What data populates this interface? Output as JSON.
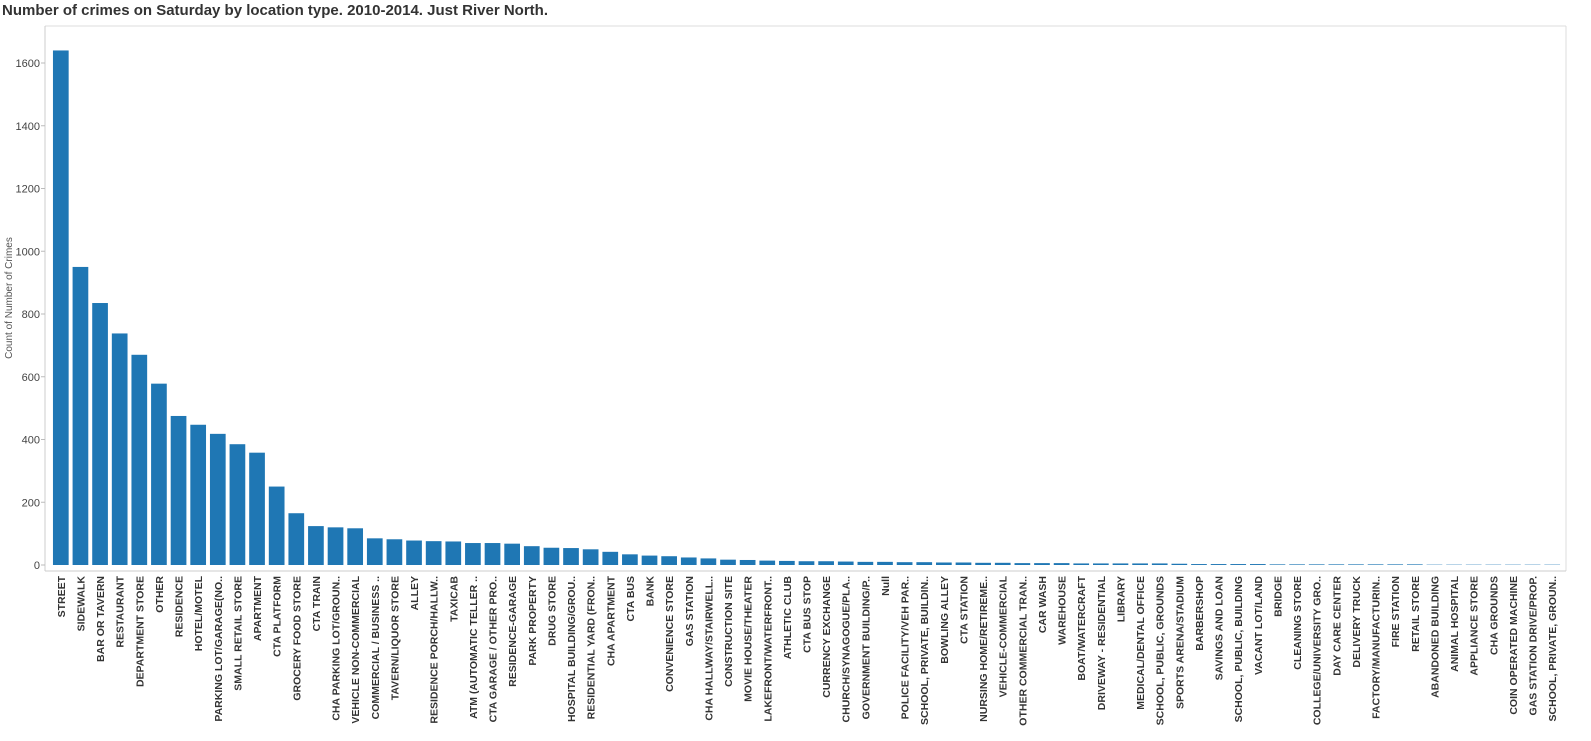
{
  "chart_data": {
    "type": "bar",
    "title": "Number of crimes on Saturday by location type. 2010-2014.  Just River North.",
    "xlabel": "",
    "ylabel": "Count of Number of Crimes",
    "ylim": [
      0,
      1700
    ],
    "yticks": [
      0,
      200,
      400,
      600,
      800,
      1000,
      1200,
      1400,
      1600
    ],
    "grid": false,
    "bar_color": "#1f77b4",
    "categories": [
      "STREET",
      "SIDEWALK",
      "BAR OR TAVERN",
      "RESTAURANT",
      "DEPARTMENT STORE",
      "OTHER",
      "RESIDENCE",
      "HOTEL/MOTEL",
      "PARKING LOT/GARAGE(NO..",
      "SMALL RETAIL STORE",
      "APARTMENT",
      "CTA PLATFORM",
      "GROCERY FOOD STORE",
      "CTA TRAIN",
      "CHA PARKING LOT/GROUN..",
      "VEHICLE NON-COMMERCIAL",
      "COMMERCIAL / BUSINESS ..",
      "TAVERN/LIQUOR STORE",
      "ALLEY",
      "RESIDENCE PORCH/HALLW..",
      "TAXICAB",
      "ATM (AUTOMATIC TELLER ..",
      "CTA GARAGE / OTHER PRO..",
      "RESIDENCE-GARAGE",
      "PARK PROPERTY",
      "DRUG STORE",
      "HOSPITAL BUILDING/GROU..",
      "RESIDENTIAL YARD (FRON..",
      "CHA APARTMENT",
      "CTA BUS",
      "BANK",
      "CONVENIENCE STORE",
      "GAS STATION",
      "CHA HALLWAY/STAIRWELL..",
      "CONSTRUCTION SITE",
      "MOVIE HOUSE/THEATER",
      "LAKEFRONT/WATERFRONT..",
      "ATHLETIC CLUB",
      "CTA BUS STOP",
      "CURRENCY EXCHANGE",
      "CHURCH/SYNAGOGUE/PLA..",
      "GOVERNMENT BUILDING/P..",
      "Null",
      "POLICE FACILITY/VEH PAR..",
      "SCHOOL, PRIVATE, BUILDIN..",
      "BOWLING ALLEY",
      "CTA STATION",
      "NURSING HOME/RETIREME..",
      "VEHICLE-COMMERCIAL",
      "OTHER COMMERCIAL TRAN..",
      "CAR WASH",
      "WAREHOUSE",
      "BOAT/WATERCRAFT",
      "DRIVEWAY - RESIDENTIAL",
      "LIBRARY",
      "MEDICAL/DENTAL OFFICE",
      "SCHOOL, PUBLIC, GROUNDS",
      "SPORTS ARENA/STADIUM",
      "BARBERSHOP",
      "SAVINGS AND LOAN",
      "SCHOOL, PUBLIC, BUILDING",
      "VACANT LOT/LAND",
      "BRIDGE",
      "CLEANING STORE",
      "COLLEGE/UNIVERSITY GRO..",
      "DAY CARE CENTER",
      "DELIVERY TRUCK",
      "FACTORY/MANUFACTURIN..",
      "FIRE STATION",
      "RETAIL STORE",
      "ABANDONED BUILDING",
      "ANIMAL HOSPITAL",
      "APPLIANCE STORE",
      "CHA GROUNDS",
      "COIN OPERATED MACHINE",
      "GAS STATION DRIVE/PROP.",
      "SCHOOL, PRIVATE, GROUN.."
    ],
    "values": [
      1640,
      950,
      835,
      738,
      670,
      578,
      475,
      447,
      418,
      385,
      358,
      250,
      165,
      124,
      120,
      117,
      85,
      82,
      78,
      76,
      75,
      70,
      70,
      68,
      60,
      55,
      54,
      50,
      42,
      34,
      30,
      28,
      24,
      21,
      17,
      16,
      14,
      13,
      12,
      12,
      11,
      10,
      10,
      9,
      9,
      8,
      8,
      7,
      7,
      6,
      6,
      6,
      5,
      5,
      5,
      5,
      5,
      4,
      3,
      3,
      3,
      3,
      2,
      2,
      2,
      2,
      2,
      2,
      2,
      2,
      1,
      1,
      1,
      1,
      1,
      1,
      1
    ]
  }
}
